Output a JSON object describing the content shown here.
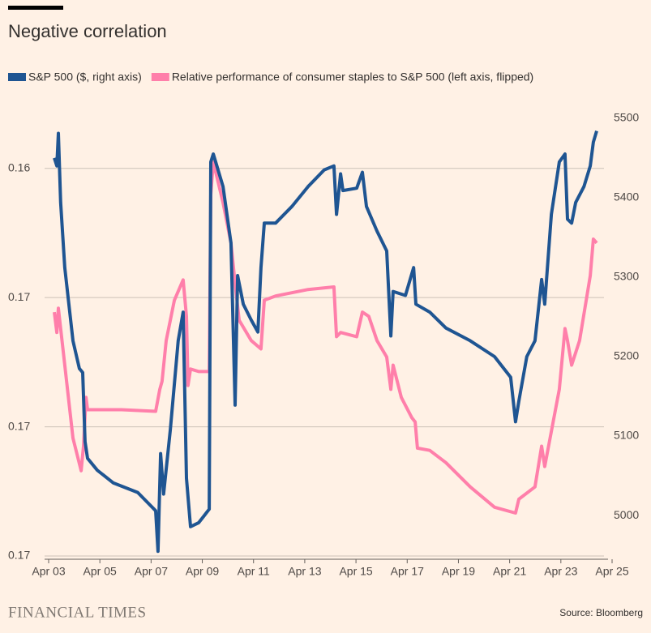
{
  "chart_data": {
    "type": "line",
    "title": "Negative correlation",
    "source": "Source: Bloomberg",
    "brand": "FINANCIAL TIMES",
    "xlim": [
      3,
      25
    ],
    "xticks": [
      {
        "value": 3,
        "label": "Apr 03"
      },
      {
        "value": 5,
        "label": "Apr 05"
      },
      {
        "value": 7,
        "label": "Apr 07"
      },
      {
        "value": 9,
        "label": "Apr 09"
      },
      {
        "value": 11,
        "label": "Apr 11"
      },
      {
        "value": 13,
        "label": "Apr 13"
      },
      {
        "value": 15,
        "label": "Apr 15"
      },
      {
        "value": 17,
        "label": "Apr 17"
      },
      {
        "value": 19,
        "label": "Apr 19"
      },
      {
        "value": 21,
        "label": "Apr 21"
      },
      {
        "value": 23,
        "label": "Apr 23"
      },
      {
        "value": 25,
        "label": "Apr 25"
      }
    ],
    "ylim": [
      0.1603,
      0.1741
    ],
    "y_inverted": true,
    "yticks": [
      {
        "value": 0.162,
        "label": "0.16"
      },
      {
        "value": 0.166,
        "label": "0.17"
      },
      {
        "value": 0.17,
        "label": "0.17"
      },
      {
        "value": 0.174,
        "label": "0.17"
      }
    ],
    "y2lim": [
      4945,
      5506
    ],
    "y2ticks": [
      5000,
      5100,
      5200,
      5300,
      5400,
      5500
    ],
    "grid": true,
    "series": [
      {
        "name": "S&P 500 ($, right axis)",
        "color": "#1f5592",
        "axis": "y2",
        "x": [
          3.22,
          3.32,
          3.38,
          3.47,
          3.63,
          3.95,
          4.2,
          4.33,
          4.42,
          4.52,
          4.9,
          5.53,
          6.48,
          7.18,
          7.27,
          7.37,
          7.49,
          7.75,
          8.06,
          8.25,
          8.38,
          8.54,
          8.86,
          9.27,
          9.33,
          9.43,
          9.81,
          10.12,
          10.28,
          10.38,
          10.6,
          10.91,
          11.17,
          11.29,
          11.42,
          11.86,
          12.5,
          13.13,
          13.76,
          14.14,
          14.24,
          14.4,
          14.49,
          15.03,
          15.25,
          15.41,
          15.82,
          16.2,
          16.36,
          16.45,
          16.93,
          17.25,
          17.34,
          17.88,
          18.51,
          19.46,
          20.41,
          21.04,
          21.23,
          21.36,
          21.67,
          21.99,
          22.25,
          22.37,
          22.63,
          22.94,
          23.16,
          23.26,
          23.42,
          23.58,
          23.9,
          24.15,
          24.27,
          24.4
        ],
        "values": [
          5450,
          5440,
          5481,
          5394,
          5312,
          5220,
          5185,
          5180,
          5093,
          5072,
          5057,
          5041,
          5029,
          5006,
          4955,
          5078,
          5027,
          5108,
          5220,
          5256,
          5047,
          4986,
          4991,
          5008,
          5445,
          5455,
          5414,
          5343,
          5139,
          5302,
          5266,
          5246,
          5231,
          5312,
          5368,
          5368,
          5389,
          5414,
          5435,
          5440,
          5379,
          5430,
          5409,
          5412,
          5432,
          5389,
          5358,
          5333,
          5226,
          5282,
          5277,
          5312,
          5266,
          5256,
          5236,
          5220,
          5200,
          5174,
          5118,
          5144,
          5200,
          5220,
          5297,
          5266,
          5379,
          5445,
          5455,
          5373,
          5368,
          5394,
          5414,
          5440,
          5470,
          5484
        ]
      },
      {
        "name": "Relative performance of consumer staples to S&P 500 (left axis, flipped)",
        "color": "#ff7faa",
        "x": [
          3.22,
          3.32,
          3.38,
          3.63,
          3.95,
          4.27,
          4.36,
          4.46,
          4.52,
          5.85,
          7.18,
          7.34,
          7.43,
          7.59,
          7.91,
          8.25,
          8.38,
          8.44,
          8.54,
          8.86,
          9.27,
          9.33,
          9.43,
          9.81,
          10.12,
          10.28,
          10.44,
          10.91,
          11.29,
          11.42,
          11.86,
          13.13,
          14.14,
          14.24,
          14.4,
          15.03,
          15.25,
          15.5,
          15.82,
          16.2,
          16.36,
          16.45,
          16.77,
          17.18,
          17.31,
          17.4,
          17.88,
          18.51,
          19.46,
          20.41,
          21.23,
          21.36,
          21.99,
          22.25,
          22.37,
          22.94,
          23.16,
          23.26,
          23.42,
          23.73,
          24.15,
          24.27,
          24.4
        ],
        "values": [
          0.16645,
          0.16708,
          0.16633,
          0.16809,
          0.17035,
          0.17136,
          0.1706,
          0.16909,
          0.16947,
          0.16947,
          0.16952,
          0.16884,
          0.16859,
          0.16733,
          0.16608,
          0.16545,
          0.16658,
          0.16872,
          0.16821,
          0.16829,
          0.16829,
          0.16281,
          0.1618,
          0.16306,
          0.16431,
          0.16557,
          0.1667,
          0.16733,
          0.16759,
          0.16608,
          0.16595,
          0.16575,
          0.16567,
          0.16721,
          0.16708,
          0.16721,
          0.16645,
          0.16658,
          0.16733,
          0.16784,
          0.16884,
          0.16809,
          0.16909,
          0.16972,
          0.16985,
          0.17066,
          0.17073,
          0.17111,
          0.17186,
          0.17249,
          0.17267,
          0.17224,
          0.17186,
          0.1706,
          0.17123,
          0.16884,
          0.16696,
          0.16733,
          0.16809,
          0.16733,
          0.16532,
          0.16419,
          0.16431
        ]
      }
    ]
  }
}
